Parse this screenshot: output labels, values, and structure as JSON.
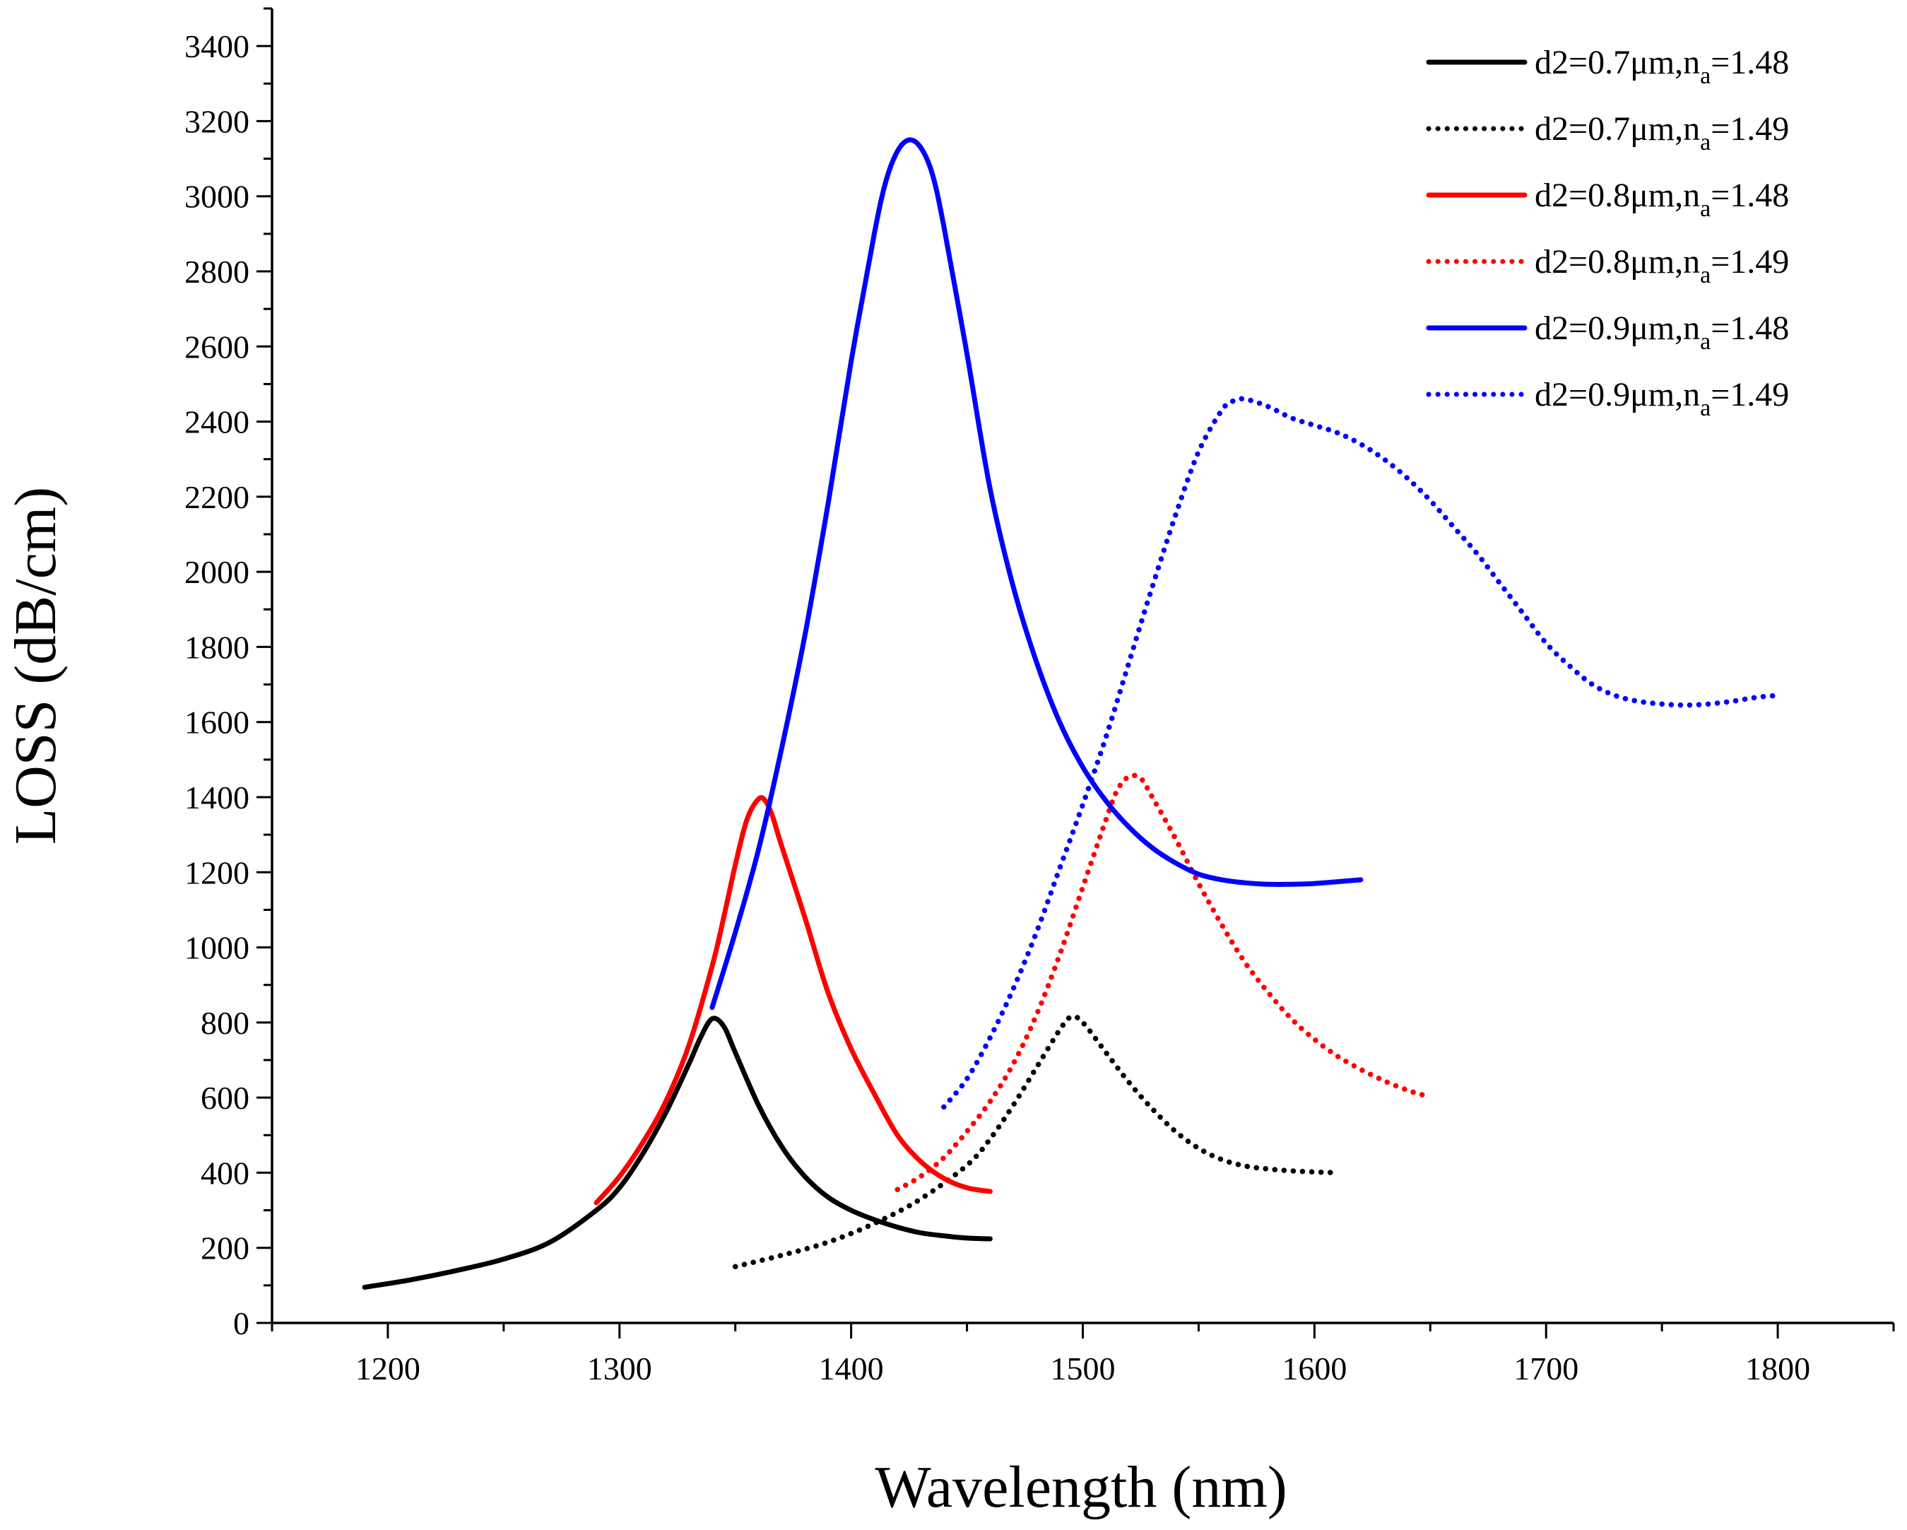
{
  "chart_data": {
    "type": "line",
    "title": "",
    "xlabel": "Wavelength (nm)",
    "ylabel": "LOSS (dB/cm)",
    "xlim": [
      1150,
      1850
    ],
    "ylim": [
      0,
      3500
    ],
    "x_ticks": [
      1200,
      1300,
      1400,
      1500,
      1600,
      1700,
      1800
    ],
    "y_ticks": [
      0,
      200,
      400,
      600,
      800,
      1000,
      1200,
      1400,
      1600,
      1800,
      2000,
      2200,
      2400,
      2600,
      2800,
      3000,
      3200,
      3400
    ],
    "x_minor_step": 50,
    "y_minor_step": 100,
    "grid": false,
    "legend_position": "top-right",
    "series": [
      {
        "name": "d2=0.7μm,n_a=1.48",
        "legend_prefix": "d2=0.7μm,n",
        "legend_sub": "a",
        "legend_suffix": "=1.48",
        "color": "#000000",
        "style": "solid",
        "x": [
          1190,
          1210,
          1230,
          1250,
          1270,
          1290,
          1300,
          1310,
          1320,
          1330,
          1335,
          1340,
          1345,
          1350,
          1360,
          1370,
          1380,
          1390,
          1400,
          1410,
          1420,
          1430,
          1440,
          1450,
          1460
        ],
        "y": [
          95,
          115,
          140,
          170,
          215,
          300,
          360,
          450,
          560,
          690,
          760,
          810,
          790,
          720,
          580,
          470,
          390,
          335,
          300,
          275,
          255,
          240,
          232,
          226,
          224
        ]
      },
      {
        "name": "d2=0.7μm,n_a=1.49",
        "legend_prefix": "d2=0.7μm,n",
        "legend_sub": "a",
        "legend_suffix": "=1.49",
        "color": "#000000",
        "style": "dotted",
        "x": [
          1350,
          1370,
          1390,
          1410,
          1430,
          1450,
          1460,
          1470,
          1480,
          1490,
          1495,
          1500,
          1510,
          1520,
          1530,
          1540,
          1550,
          1560,
          1570,
          1580,
          1590,
          1600,
          1610
        ],
        "y": [
          150,
          180,
          215,
          265,
          330,
          420,
          490,
          580,
          680,
          780,
          815,
          800,
          720,
          640,
          570,
          510,
          465,
          435,
          418,
          410,
          405,
          402,
          400
        ]
      },
      {
        "name": "d2=0.8μm,n_a=1.48",
        "legend_prefix": "d2=0.8μm,n",
        "legend_sub": "a",
        "legend_suffix": "=1.48",
        "color": "#ff0000",
        "style": "solid",
        "x": [
          1290,
          1300,
          1310,
          1320,
          1330,
          1340,
          1345,
          1350,
          1355,
          1360,
          1363,
          1366,
          1370,
          1380,
          1390,
          1400,
          1410,
          1420,
          1430,
          1440,
          1450,
          1460
        ],
        "y": [
          320,
          390,
          480,
          590,
          740,
          950,
          1080,
          1220,
          1340,
          1395,
          1390,
          1350,
          1270,
          1080,
          880,
          730,
          610,
          500,
          430,
          385,
          360,
          350
        ]
      },
      {
        "name": "d2=0.8μm,n_a=1.49",
        "legend_prefix": "d2=0.8μm,n",
        "legend_sub": "a",
        "legend_suffix": "=1.49",
        "color": "#ff0000",
        "style": "dotted",
        "x": [
          1420,
          1430,
          1440,
          1450,
          1460,
          1470,
          1480,
          1490,
          1500,
          1510,
          1515,
          1520,
          1525,
          1530,
          1540,
          1550,
          1560,
          1570,
          1580,
          1590,
          1600,
          1610,
          1620,
          1630,
          1640,
          1648
        ],
        "y": [
          355,
          390,
          440,
          510,
          590,
          690,
          820,
          980,
          1160,
          1340,
          1420,
          1455,
          1450,
          1400,
          1290,
          1170,
          1060,
          960,
          880,
          810,
          755,
          710,
          675,
          645,
          620,
          605
        ]
      },
      {
        "name": "d2=0.9μm,n_a=1.48",
        "legend_prefix": "d2=0.9μm,n",
        "legend_sub": "a",
        "legend_suffix": "=1.48",
        "color": "#0000ff",
        "style": "solid",
        "x": [
          1340,
          1350,
          1360,
          1370,
          1380,
          1390,
          1400,
          1410,
          1415,
          1420,
          1425,
          1430,
          1435,
          1440,
          1450,
          1460,
          1470,
          1480,
          1490,
          1500,
          1510,
          1520,
          1530,
          1540,
          1550,
          1560,
          1570,
          1580,
          1590,
          1600,
          1610,
          1620
        ],
        "y": [
          840,
          1040,
          1260,
          1530,
          1830,
          2180,
          2560,
          2900,
          3040,
          3120,
          3150,
          3130,
          3060,
          2920,
          2580,
          2220,
          1960,
          1760,
          1600,
          1480,
          1390,
          1320,
          1265,
          1225,
          1195,
          1180,
          1172,
          1168,
          1168,
          1170,
          1175,
          1180
        ]
      },
      {
        "name": "d2=0.9μm,n_a=1.49",
        "legend_prefix": "d2=0.9μm,n",
        "legend_sub": "a",
        "legend_suffix": "=1.49",
        "color": "#0000ff",
        "style": "dotted",
        "x": [
          1440,
          1450,
          1460,
          1470,
          1480,
          1490,
          1500,
          1510,
          1520,
          1530,
          1540,
          1550,
          1560,
          1565,
          1570,
          1580,
          1590,
          1600,
          1610,
          1620,
          1630,
          1640,
          1650,
          1660,
          1670,
          1680,
          1690,
          1700,
          1710,
          1720,
          1730,
          1740,
          1750,
          1760,
          1770,
          1780,
          1790,
          1798
        ],
        "y": [
          575,
          650,
          760,
          890,
          1040,
          1210,
          1380,
          1560,
          1760,
          1960,
          2150,
          2320,
          2430,
          2455,
          2460,
          2440,
          2410,
          2390,
          2370,
          2340,
          2300,
          2250,
          2190,
          2120,
          2050,
          1970,
          1890,
          1810,
          1750,
          1700,
          1670,
          1655,
          1648,
          1645,
          1648,
          1655,
          1665,
          1670
        ]
      }
    ]
  }
}
